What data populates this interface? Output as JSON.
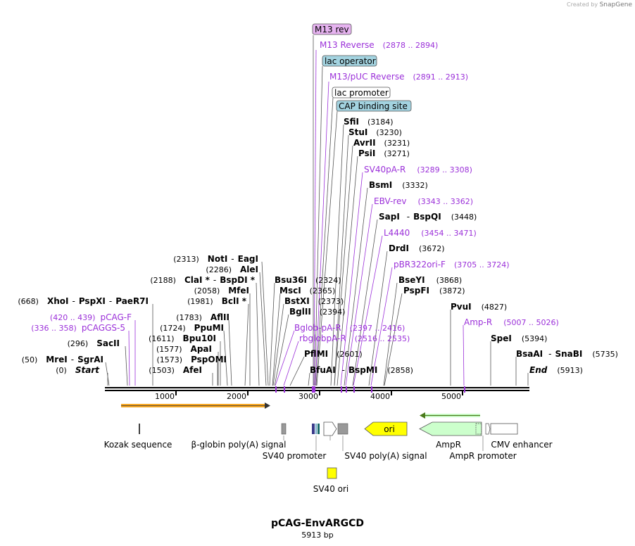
{
  "credit": {
    "prefix": "Created by",
    "brand": "SnapGene"
  },
  "plasmid": {
    "name": "pCAG-EnvARGCD",
    "length": "5913 bp"
  },
  "enzymes": [
    {
      "id": "m13rev_box"
    },
    {
      "name": "SfiI",
      "pos": "(3184)"
    },
    {
      "name": "StuI",
      "pos": "(3230)"
    },
    {
      "name": "AvrII",
      "pos": "(3231)"
    },
    {
      "name": "PsiI",
      "pos": "(3271)"
    },
    {
      "name": "BsmI",
      "pos": "(3332)"
    },
    {
      "name": "SapI",
      "sep": "-",
      "name2": "BspQI",
      "pos": "(3448)"
    },
    {
      "name": "DrdI",
      "pos": "(3672)"
    },
    {
      "name": "BseYI",
      "pos": "(3868)"
    },
    {
      "name": "PspFI",
      "pos": "(3872)"
    },
    {
      "name": "PvuI",
      "pos": "(4827)"
    },
    {
      "name": "SpeI",
      "pos": "(5394)"
    },
    {
      "name": "BsaAI",
      "sep": "-",
      "name2": "SnaBI",
      "pos": "(5735)"
    },
    {
      "name": "End",
      "pos": "(5913)"
    },
    {
      "name": "NotI",
      "sep": "-",
      "name2": "EagI",
      "pos": "(2313)"
    },
    {
      "name": "AleI",
      "pos": "(2286)"
    },
    {
      "name": "ClaI *",
      "sep": "-",
      "name2": "BspDI *",
      "pos": "(2188)"
    },
    {
      "name": "MfeI",
      "pos": "(2058)"
    },
    {
      "name": "BclI *",
      "pos": "(1981)"
    },
    {
      "name": "XhoI",
      "sep": "-",
      "name2": "PspXI",
      "sep2": "-",
      "name3": "PaeR7I",
      "pos": "(668)"
    },
    {
      "name": "AflII",
      "pos": "(1783)"
    },
    {
      "name": "PpuMI",
      "pos": "(1724)"
    },
    {
      "name": "Bpu10I",
      "pos": "(1611)"
    },
    {
      "name": "ApaI",
      "pos": "(1577)"
    },
    {
      "name": "PspOMI",
      "pos": "(1573)"
    },
    {
      "name": "AfeI",
      "pos": "(1503)"
    },
    {
      "name": "SacII",
      "pos": "(296)"
    },
    {
      "name": "MreI",
      "sep": "-",
      "name2": "SgrAI",
      "pos": "(50)"
    },
    {
      "name": "Start",
      "pos": "(0)"
    },
    {
      "name": "Bsu36I",
      "pos": "(2324)"
    },
    {
      "name": "MscI",
      "pos": "(2365)"
    },
    {
      "name": "BstXI",
      "pos": "(2373)"
    },
    {
      "name": "BglII",
      "pos": "(2394)"
    },
    {
      "name": "PflMI",
      "pos": "(2601)"
    },
    {
      "name": "BfuAI",
      "sep": "-",
      "name2": "BspMI",
      "pos": "(2858)"
    }
  ],
  "primers": [
    {
      "name": "M13 Reverse",
      "pos": "(2878 .. 2894)"
    },
    {
      "name": "M13/pUC Reverse",
      "pos": "(2891 .. 2913)"
    },
    {
      "name": "SV40pA-R",
      "pos": "(3289 .. 3308)"
    },
    {
      "name": "EBV-rev",
      "pos": "(3343 .. 3362)"
    },
    {
      "name": "L4440",
      "pos": "(3454 .. 3471)"
    },
    {
      "name": "pBR322ori-F",
      "pos": "(3705 .. 3724)"
    },
    {
      "name": "Amp-R",
      "pos": "(5007 .. 5026)"
    },
    {
      "name": "pCAG-F",
      "pos": "(420 .. 439)"
    },
    {
      "name": "pCAGGS-5",
      "pos": "(336 .. 358)"
    },
    {
      "name": "Bglob-pA-R",
      "pos": "(2397 .. 2416)"
    },
    {
      "name": "rbglobpA-R",
      "pos": "(2516 .. 2535)"
    }
  ],
  "boxed_features": {
    "m13rev": "M13 rev",
    "lac_operator": "lac operator",
    "lac_promoter": "lac promoter",
    "cap_site": "CAP binding site"
  },
  "ruler": {
    "ticks": [
      "1000",
      "2000",
      "3000",
      "4000",
      "5000"
    ]
  },
  "features": {
    "kozak": "Kozak sequence",
    "bglobin": "β-globin poly(A) signal",
    "sv40_promoter": "SV40 promoter",
    "sv40_polya": "SV40 poly(A) signal",
    "ori": "ori",
    "ampr": "AmpR",
    "ampr_promoter": "AmpR promoter",
    "cmv": "CMV enhancer",
    "sv40_ori": "SV40 ori"
  },
  "colors": {
    "primer": "#9b30d9",
    "ori": "#ffff00",
    "ampr": "#ccffcc",
    "orange": "#f5a623",
    "green": "#4a7a1a",
    "lacop": "#a3d3e0",
    "m13": "#e6b3f0"
  }
}
